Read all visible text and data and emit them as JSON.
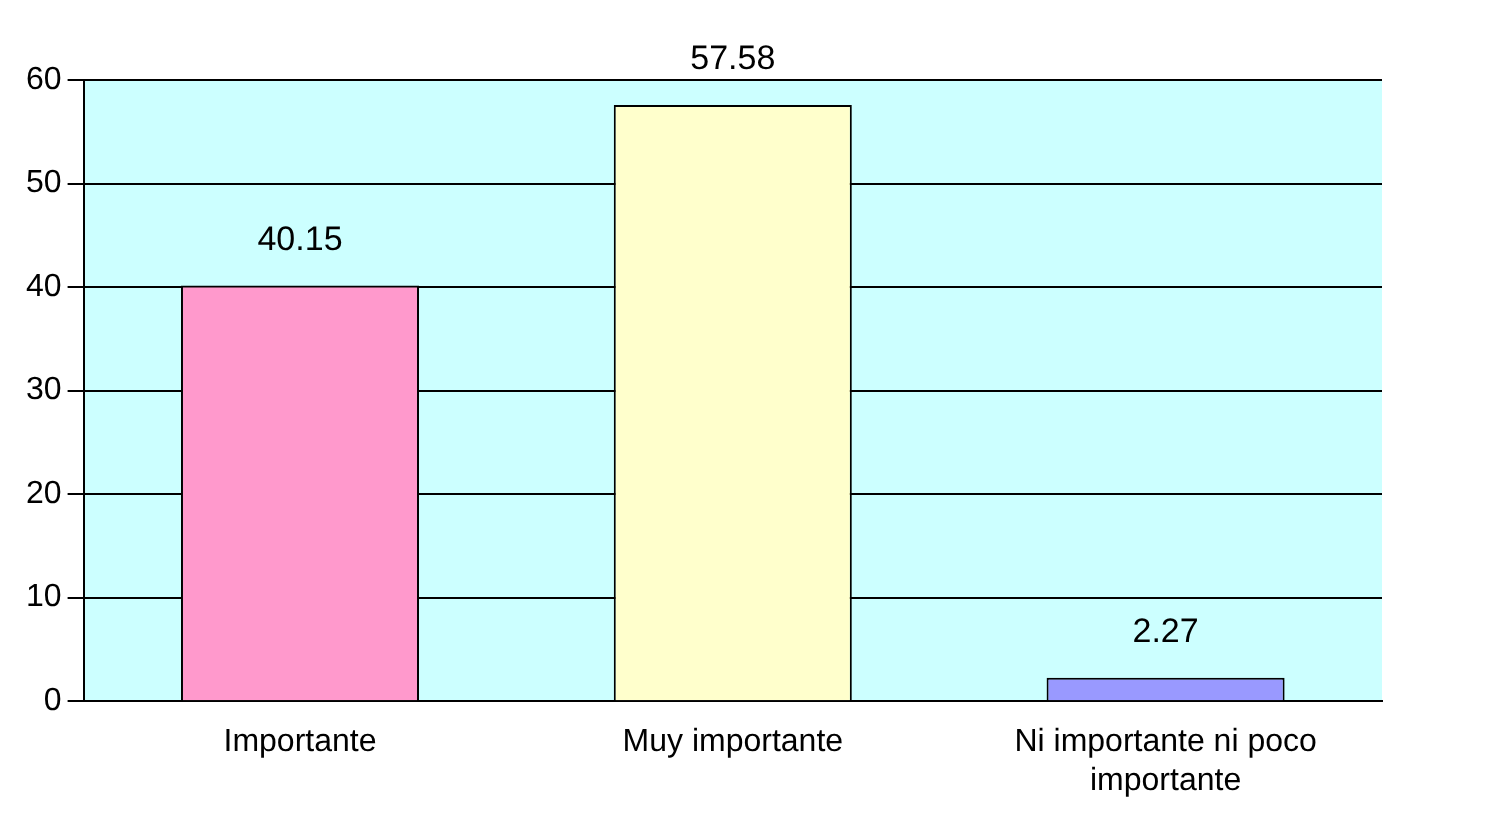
{
  "chart_data": {
    "type": "bar",
    "categories": [
      "Importante",
      "Muy importante",
      "Ni importante ni poco importante"
    ],
    "values": [
      40.15,
      57.58,
      2.27
    ],
    "colors": [
      "#ff99cc",
      "#ffffcc",
      "#9999ff"
    ],
    "ylim": [
      0,
      60
    ],
    "yticks": [
      0,
      10,
      20,
      30,
      40,
      50,
      60
    ],
    "grid": "y",
    "data_labels": true,
    "legend": false
  }
}
